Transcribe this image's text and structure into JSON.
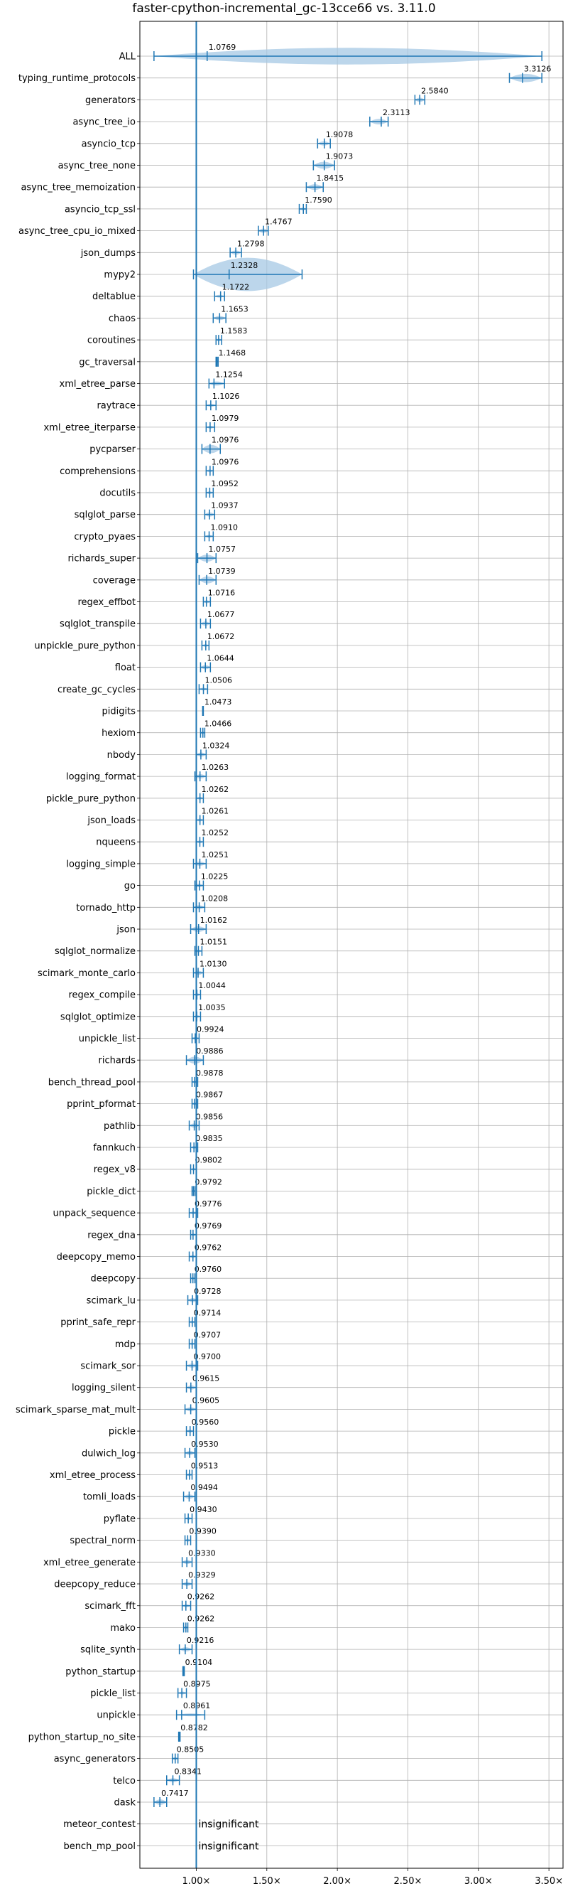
{
  "chart_data": {
    "type": "violin",
    "title": "faster-cpython-incremental_gc-13cce66 vs. 3.11.0",
    "xlim": [
      0.6,
      3.6
    ],
    "xticks": [
      1.0,
      1.5,
      2.0,
      2.5,
      3.0,
      3.5
    ],
    "xtick_labels": [
      "1.00×",
      "1.50×",
      "2.00×",
      "2.50×",
      "3.00×",
      "3.50×"
    ],
    "reference_x": 1.0,
    "grid": true,
    "violin_color": "#a6c8e4",
    "line_color": "#1f77b4",
    "reference_color": "#1f77b4",
    "benchmarks": [
      {
        "name": "ALL",
        "value": 1.0769,
        "label": "1.0769",
        "lo": 0.7,
        "hi": 3.45,
        "w": 0.12
      },
      {
        "name": "typing_runtime_protocols",
        "value": 3.3126,
        "label": "3.3126",
        "lo": 3.22,
        "hi": 3.45,
        "w": 0.06
      },
      {
        "name": "generators",
        "value": 2.584,
        "label": "2.5840",
        "lo": 2.55,
        "hi": 2.62,
        "w": 0.03
      },
      {
        "name": "async_tree_io",
        "value": 2.3113,
        "label": "2.3113",
        "lo": 2.23,
        "hi": 2.36,
        "w": 0.04
      },
      {
        "name": "asyncio_tcp",
        "value": 1.9078,
        "label": "1.9078",
        "lo": 1.86,
        "hi": 1.95,
        "w": 0.03
      },
      {
        "name": "async_tree_none",
        "value": 1.9073,
        "label": "1.9073",
        "lo": 1.83,
        "hi": 1.98,
        "w": 0.05
      },
      {
        "name": "async_tree_memoization",
        "value": 1.8415,
        "label": "1.8415",
        "lo": 1.78,
        "hi": 1.9,
        "w": 0.04
      },
      {
        "name": "asyncio_tcp_ssl",
        "value": 1.759,
        "label": "1.7590",
        "lo": 1.73,
        "hi": 1.78,
        "w": 0.02
      },
      {
        "name": "async_tree_cpu_io_mixed",
        "value": 1.4767,
        "label": "1.4767",
        "lo": 1.44,
        "hi": 1.51,
        "w": 0.03
      },
      {
        "name": "json_dumps",
        "value": 1.2798,
        "label": "1.2798",
        "lo": 1.24,
        "hi": 1.32,
        "w": 0.03
      },
      {
        "name": "mypy2",
        "value": 1.2328,
        "label": "1.2328",
        "lo": 0.98,
        "hi": 1.75,
        "w": 0.24
      },
      {
        "name": "deltablue",
        "value": 1.1722,
        "label": "1.1722",
        "lo": 1.13,
        "hi": 1.2,
        "w": 0.02
      },
      {
        "name": "chaos",
        "value": 1.1653,
        "label": "1.1653",
        "lo": 1.12,
        "hi": 1.21,
        "w": 0.03
      },
      {
        "name": "coroutines",
        "value": 1.1583,
        "label": "1.1583",
        "lo": 1.14,
        "hi": 1.18,
        "w": 0.02
      },
      {
        "name": "gc_traversal",
        "value": 1.1468,
        "label": "1.1468",
        "lo": 1.14,
        "hi": 1.155,
        "w": 0.01
      },
      {
        "name": "xml_etree_parse",
        "value": 1.1254,
        "label": "1.1254",
        "lo": 1.09,
        "hi": 1.2,
        "w": 0.03
      },
      {
        "name": "raytrace",
        "value": 1.1026,
        "label": "1.1026",
        "lo": 1.07,
        "hi": 1.14,
        "w": 0.02
      },
      {
        "name": "xml_etree_iterparse",
        "value": 1.0979,
        "label": "1.0979",
        "lo": 1.07,
        "hi": 1.13,
        "w": 0.02
      },
      {
        "name": "pycparser",
        "value": 1.0976,
        "label": "1.0976",
        "lo": 1.04,
        "hi": 1.17,
        "w": 0.06
      },
      {
        "name": "comprehensions",
        "value": 1.0976,
        "label": "1.0976",
        "lo": 1.07,
        "hi": 1.12,
        "w": 0.02
      },
      {
        "name": "docutils",
        "value": 1.0952,
        "label": "1.0952",
        "lo": 1.07,
        "hi": 1.12,
        "w": 0.02
      },
      {
        "name": "sqlglot_parse",
        "value": 1.0937,
        "label": "1.0937",
        "lo": 1.06,
        "hi": 1.13,
        "w": 0.03
      },
      {
        "name": "crypto_pyaes",
        "value": 1.091,
        "label": "1.0910",
        "lo": 1.06,
        "hi": 1.12,
        "w": 0.02
      },
      {
        "name": "richards_super",
        "value": 1.0757,
        "label": "1.0757",
        "lo": 1.01,
        "hi": 1.14,
        "w": 0.05
      },
      {
        "name": "coverage",
        "value": 1.0739,
        "label": "1.0739",
        "lo": 1.02,
        "hi": 1.14,
        "w": 0.05
      },
      {
        "name": "regex_effbot",
        "value": 1.0716,
        "label": "1.0716",
        "lo": 1.05,
        "hi": 1.1,
        "w": 0.02
      },
      {
        "name": "sqlglot_transpile",
        "value": 1.0677,
        "label": "1.0677",
        "lo": 1.03,
        "hi": 1.1,
        "w": 0.03
      },
      {
        "name": "unpickle_pure_python",
        "value": 1.0672,
        "label": "1.0672",
        "lo": 1.04,
        "hi": 1.09,
        "w": 0.02
      },
      {
        "name": "float",
        "value": 1.0644,
        "label": "1.0644",
        "lo": 1.03,
        "hi": 1.1,
        "w": 0.03
      },
      {
        "name": "create_gc_cycles",
        "value": 1.0506,
        "label": "1.0506",
        "lo": 1.02,
        "hi": 1.08,
        "w": 0.02
      },
      {
        "name": "pidigits",
        "value": 1.0473,
        "label": "1.0473",
        "lo": 1.045,
        "hi": 1.05,
        "w": 0.005
      },
      {
        "name": "hexiom",
        "value": 1.0466,
        "label": "1.0466",
        "lo": 1.03,
        "hi": 1.06,
        "w": 0.015
      },
      {
        "name": "nbody",
        "value": 1.0324,
        "label": "1.0324",
        "lo": 1.0,
        "hi": 1.07,
        "w": 0.03
      },
      {
        "name": "logging_format",
        "value": 1.0263,
        "label": "1.0263",
        "lo": 0.99,
        "hi": 1.07,
        "w": 0.03
      },
      {
        "name": "pickle_pure_python",
        "value": 1.0262,
        "label": "1.0262",
        "lo": 1.0,
        "hi": 1.05,
        "w": 0.02
      },
      {
        "name": "json_loads",
        "value": 1.0261,
        "label": "1.0261",
        "lo": 1.0,
        "hi": 1.05,
        "w": 0.02
      },
      {
        "name": "nqueens",
        "value": 1.0252,
        "label": "1.0252",
        "lo": 1.0,
        "hi": 1.05,
        "w": 0.02
      },
      {
        "name": "logging_simple",
        "value": 1.0251,
        "label": "1.0251",
        "lo": 0.98,
        "hi": 1.07,
        "w": 0.03
      },
      {
        "name": "go",
        "value": 1.0225,
        "label": "1.0225",
        "lo": 0.99,
        "hi": 1.05,
        "w": 0.025
      },
      {
        "name": "tornado_http",
        "value": 1.0208,
        "label": "1.0208",
        "lo": 0.98,
        "hi": 1.06,
        "w": 0.03
      },
      {
        "name": "json",
        "value": 1.0162,
        "label": "1.0162",
        "lo": 0.96,
        "hi": 1.07,
        "w": 0.04
      },
      {
        "name": "sqlglot_normalize",
        "value": 1.0151,
        "label": "1.0151",
        "lo": 0.99,
        "hi": 1.04,
        "w": 0.02
      },
      {
        "name": "scimark_monte_carlo",
        "value": 1.013,
        "label": "1.0130",
        "lo": 0.98,
        "hi": 1.05,
        "w": 0.03
      },
      {
        "name": "regex_compile",
        "value": 1.0044,
        "label": "1.0044",
        "lo": 0.98,
        "hi": 1.03,
        "w": 0.02
      },
      {
        "name": "sqlglot_optimize",
        "value": 1.0035,
        "label": "1.0035",
        "lo": 0.98,
        "hi": 1.03,
        "w": 0.02
      },
      {
        "name": "unpickle_list",
        "value": 0.9924,
        "label": "0.9924",
        "lo": 0.97,
        "hi": 1.02,
        "w": 0.02
      },
      {
        "name": "richards",
        "value": 0.9886,
        "label": "0.9886",
        "lo": 0.93,
        "hi": 1.05,
        "w": 0.05
      },
      {
        "name": "bench_thread_pool",
        "value": 0.9878,
        "label": "0.9878",
        "lo": 0.97,
        "hi": 1.01,
        "w": 0.015
      },
      {
        "name": "pprint_pformat",
        "value": 0.9867,
        "label": "0.9867",
        "lo": 0.97,
        "hi": 1.01,
        "w": 0.015
      },
      {
        "name": "pathlib",
        "value": 0.9856,
        "label": "0.9856",
        "lo": 0.95,
        "hi": 1.02,
        "w": 0.03
      },
      {
        "name": "fannkuch",
        "value": 0.9835,
        "label": "0.9835",
        "lo": 0.96,
        "hi": 1.01,
        "w": 0.02
      },
      {
        "name": "regex_v8",
        "value": 0.9802,
        "label": "0.9802",
        "lo": 0.96,
        "hi": 1.0,
        "w": 0.02
      },
      {
        "name": "pickle_dict",
        "value": 0.9792,
        "label": "0.9792",
        "lo": 0.97,
        "hi": 0.99,
        "w": 0.01
      },
      {
        "name": "unpack_sequence",
        "value": 0.9776,
        "label": "0.9776",
        "lo": 0.95,
        "hi": 1.01,
        "w": 0.02
      },
      {
        "name": "regex_dna",
        "value": 0.9769,
        "label": "0.9769",
        "lo": 0.96,
        "hi": 1.0,
        "w": 0.02
      },
      {
        "name": "deepcopy_memo",
        "value": 0.9762,
        "label": "0.9762",
        "lo": 0.95,
        "hi": 1.0,
        "w": 0.02
      },
      {
        "name": "deepcopy",
        "value": 0.976,
        "label": "0.9760",
        "lo": 0.96,
        "hi": 0.99,
        "w": 0.015
      },
      {
        "name": "scimark_lu",
        "value": 0.9728,
        "label": "0.9728",
        "lo": 0.94,
        "hi": 1.01,
        "w": 0.03
      },
      {
        "name": "pprint_safe_repr",
        "value": 0.9714,
        "label": "0.9714",
        "lo": 0.95,
        "hi": 0.99,
        "w": 0.02
      },
      {
        "name": "mdp",
        "value": 0.9707,
        "label": "0.9707",
        "lo": 0.95,
        "hi": 0.99,
        "w": 0.02
      },
      {
        "name": "scimark_sor",
        "value": 0.97,
        "label": "0.9700",
        "lo": 0.93,
        "hi": 1.01,
        "w": 0.03
      },
      {
        "name": "logging_silent",
        "value": 0.9615,
        "label": "0.9615",
        "lo": 0.93,
        "hi": 1.0,
        "w": 0.03
      },
      {
        "name": "scimark_sparse_mat_mult",
        "value": 0.9605,
        "label": "0.9605",
        "lo": 0.92,
        "hi": 1.0,
        "w": 0.03
      },
      {
        "name": "pickle",
        "value": 0.956,
        "label": "0.9560",
        "lo": 0.93,
        "hi": 0.98,
        "w": 0.02
      },
      {
        "name": "dulwich_log",
        "value": 0.953,
        "label": "0.9530",
        "lo": 0.92,
        "hi": 0.99,
        "w": 0.03
      },
      {
        "name": "xml_etree_process",
        "value": 0.9513,
        "label": "0.9513",
        "lo": 0.93,
        "hi": 0.97,
        "w": 0.02
      },
      {
        "name": "tomli_loads",
        "value": 0.9494,
        "label": "0.9494",
        "lo": 0.91,
        "hi": 0.99,
        "w": 0.03
      },
      {
        "name": "pyflate",
        "value": 0.943,
        "label": "0.9430",
        "lo": 0.92,
        "hi": 0.97,
        "w": 0.02
      },
      {
        "name": "spectral_norm",
        "value": 0.939,
        "label": "0.9390",
        "lo": 0.92,
        "hi": 0.96,
        "w": 0.02
      },
      {
        "name": "xml_etree_generate",
        "value": 0.933,
        "label": "0.9330",
        "lo": 0.9,
        "hi": 0.97,
        "w": 0.03
      },
      {
        "name": "deepcopy_reduce",
        "value": 0.9329,
        "label": "0.9329",
        "lo": 0.9,
        "hi": 0.97,
        "w": 0.03
      },
      {
        "name": "scimark_fft",
        "value": 0.9262,
        "label": "0.9262",
        "lo": 0.9,
        "hi": 0.96,
        "w": 0.02
      },
      {
        "name": "mako",
        "value": 0.9262,
        "label": "0.9262",
        "lo": 0.91,
        "hi": 0.94,
        "w": 0.015
      },
      {
        "name": "sqlite_synth",
        "value": 0.9216,
        "label": "0.9216",
        "lo": 0.88,
        "hi": 0.97,
        "w": 0.03
      },
      {
        "name": "python_startup",
        "value": 0.9104,
        "label": "0.9104",
        "lo": 0.905,
        "hi": 0.915,
        "w": 0.005
      },
      {
        "name": "pickle_list",
        "value": 0.8975,
        "label": "0.8975",
        "lo": 0.87,
        "hi": 0.93,
        "w": 0.02
      },
      {
        "name": "unpickle",
        "value": 0.8961,
        "label": "0.8961",
        "lo": 0.86,
        "hi": 1.06,
        "w": 0.02
      },
      {
        "name": "python_startup_no_site",
        "value": 0.8782,
        "label": "0.8782",
        "lo": 0.875,
        "hi": 0.885,
        "w": 0.005
      },
      {
        "name": "async_generators",
        "value": 0.8505,
        "label": "0.8505",
        "lo": 0.83,
        "hi": 0.87,
        "w": 0.015
      },
      {
        "name": "telco",
        "value": 0.8341,
        "label": "0.8341",
        "lo": 0.79,
        "hi": 0.88,
        "w": 0.03
      },
      {
        "name": "dask",
        "value": 0.7417,
        "label": "0.7417",
        "lo": 0.7,
        "hi": 0.79,
        "w": 0.04
      },
      {
        "name": "meteor_contest",
        "value": null,
        "label": "insignificant"
      },
      {
        "name": "bench_mp_pool",
        "value": null,
        "label": "insignificant"
      }
    ]
  }
}
